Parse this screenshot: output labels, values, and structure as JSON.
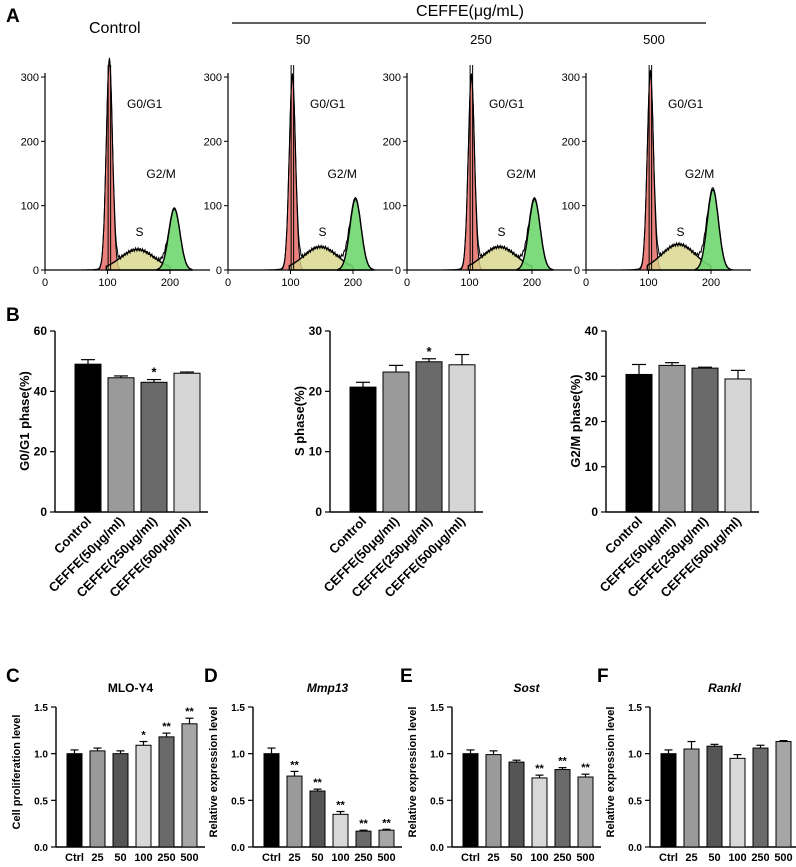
{
  "panel_labels": {
    "A": "A",
    "B": "B",
    "C": "C",
    "D": "D",
    "E": "E",
    "F": "F"
  },
  "panel_a": {
    "condition_label": "CEFFE(μg/mL)",
    "control_label": "Control",
    "concentrations": [
      "50",
      "250",
      "500"
    ],
    "histograms": [
      {
        "title": "Control",
        "g0g1_peak": 325,
        "s_peak": 32,
        "g2m_peak": 95,
        "g2m_center": 207
      },
      {
        "title": "50",
        "g0g1_peak": 300,
        "s_peak": 36,
        "g2m_peak": 110,
        "g2m_center": 204
      },
      {
        "title": "250",
        "g0g1_peak": 300,
        "s_peak": 36,
        "g2m_peak": 110,
        "g2m_center": 204
      },
      {
        "title": "500",
        "g0g1_peak": 305,
        "s_peak": 40,
        "g2m_peak": 125,
        "g2m_center": 203
      }
    ],
    "phase_labels": {
      "g0g1": "G0/G1",
      "s": "S",
      "g2m": "G2/M"
    },
    "y_ticks": [
      "0",
      "100",
      "200",
      "300"
    ],
    "x_ticks": [
      "0",
      "100",
      "200"
    ],
    "colors": {
      "g0g1": "#e8746f",
      "s": "#d8d48a",
      "g2m": "#6fd66f"
    }
  },
  "chart_data": [
    {
      "type": "bar",
      "panel": "B",
      "ylabel": "G0/G1 phase(%)",
      "ylim": [
        0,
        60
      ],
      "yticks": [
        "0",
        "20",
        "40",
        "60"
      ],
      "categories": [
        "Control",
        "CEFFE(50μg/ml)",
        "CEFFE(250μg/ml)",
        "CEFFE(500μg/ml)"
      ],
      "values": [
        49,
        44.5,
        43,
        46
      ],
      "errors": [
        1.5,
        0.6,
        0.9,
        0.4
      ],
      "sig": [
        "",
        "",
        "*",
        ""
      ],
      "colors": [
        "#000000",
        "#9a9a9a",
        "#6a6a6a",
        "#d6d6d6"
      ]
    },
    {
      "type": "bar",
      "panel": "B",
      "ylabel": "S phase(%)",
      "ylim": [
        0,
        30
      ],
      "yticks": [
        "0",
        "10",
        "20",
        "30"
      ],
      "categories": [
        "Control",
        "CEFFE(50μg/ml)",
        "CEFFE(250μg/ml)",
        "CEFFE(500μg/ml)"
      ],
      "values": [
        20.7,
        23.2,
        24.9,
        24.4
      ],
      "errors": [
        0.8,
        1.1,
        0.5,
        1.7
      ],
      "sig": [
        "",
        "",
        "*",
        ""
      ],
      "colors": [
        "#000000",
        "#9a9a9a",
        "#6a6a6a",
        "#d6d6d6"
      ]
    },
    {
      "type": "bar",
      "panel": "B",
      "ylabel": "G2/M phase(%)",
      "ylim": [
        0,
        40
      ],
      "yticks": [
        "0",
        "10",
        "20",
        "30",
        "40"
      ],
      "categories": [
        "Control",
        "CEFFE(50μg/ml)",
        "CEFFE(250μg/ml)",
        "CEFFE(500μg/ml)"
      ],
      "values": [
        30.4,
        32.4,
        31.8,
        29.4
      ],
      "errors": [
        2.2,
        0.6,
        0.2,
        1.9
      ],
      "sig": [
        "",
        "",
        "",
        ""
      ],
      "colors": [
        "#000000",
        "#9a9a9a",
        "#6a6a6a",
        "#d6d6d6"
      ]
    },
    {
      "type": "bar",
      "panel": "C",
      "title": "MLO-Y4",
      "ylabel": "Cell  proliferation level",
      "ylim": [
        0,
        1.5
      ],
      "yticks": [
        "0.0",
        "0.5",
        "1.0",
        "1.5"
      ],
      "categories": [
        "Ctrl",
        "25",
        "50",
        "100",
        "250",
        "500"
      ],
      "values": [
        1.0,
        1.03,
        1.0,
        1.09,
        1.18,
        1.32
      ],
      "errors": [
        0.04,
        0.03,
        0.03,
        0.04,
        0.04,
        0.06
      ],
      "sig": [
        "",
        "",
        "",
        "*",
        "**",
        "**"
      ],
      "colors": [
        "#000000",
        "#9a9a9a",
        "#555555",
        "#d8d8d8",
        "#6a6a6a",
        "#a6a6a6"
      ]
    },
    {
      "type": "bar",
      "panel": "D",
      "title": "Mmp13",
      "ylabel": "Relative expression level",
      "ylim": [
        0,
        1.5
      ],
      "yticks": [
        "0.0",
        "0.5",
        "1.0",
        "1.5"
      ],
      "categories": [
        "Ctrl",
        "25",
        "50",
        "100",
        "250",
        "500"
      ],
      "values": [
        1.0,
        0.76,
        0.6,
        0.35,
        0.17,
        0.18
      ],
      "errors": [
        0.06,
        0.05,
        0.02,
        0.03,
        0.01,
        0.01
      ],
      "sig": [
        "",
        "**",
        "**",
        "**",
        "**",
        "**"
      ],
      "colors": [
        "#000000",
        "#9a9a9a",
        "#555555",
        "#d8d8d8",
        "#6a6a6a",
        "#a6a6a6"
      ]
    },
    {
      "type": "bar",
      "panel": "E",
      "title": "Sost",
      "ylabel": "Relative expression level",
      "ylim": [
        0,
        1.5
      ],
      "yticks": [
        "0.0",
        "0.5",
        "1.0",
        "1.5"
      ],
      "categories": [
        "Ctrl",
        "25",
        "50",
        "100",
        "250",
        "500"
      ],
      "values": [
        1.0,
        0.99,
        0.91,
        0.74,
        0.83,
        0.75
      ],
      "errors": [
        0.04,
        0.04,
        0.02,
        0.03,
        0.02,
        0.03
      ],
      "sig": [
        "",
        "",
        "",
        "**",
        "**",
        "**"
      ],
      "colors": [
        "#000000",
        "#9a9a9a",
        "#555555",
        "#d8d8d8",
        "#6a6a6a",
        "#a6a6a6"
      ]
    },
    {
      "type": "bar",
      "panel": "F",
      "title": "Rankl",
      "ylabel": "Relative expression level",
      "ylim": [
        0,
        1.5
      ],
      "yticks": [
        "0.0",
        "0.5",
        "1.0",
        "1.5"
      ],
      "categories": [
        "Ctrl",
        "25",
        "50",
        "100",
        "250",
        "500"
      ],
      "values": [
        1.0,
        1.05,
        1.08,
        0.95,
        1.06,
        1.13
      ],
      "errors": [
        0.04,
        0.08,
        0.02,
        0.04,
        0.03,
        0.01
      ],
      "sig": [
        "",
        "",
        "",
        "",
        "",
        ""
      ],
      "colors": [
        "#000000",
        "#9a9a9a",
        "#555555",
        "#d8d8d8",
        "#6a6a6a",
        "#a6a6a6"
      ]
    }
  ]
}
